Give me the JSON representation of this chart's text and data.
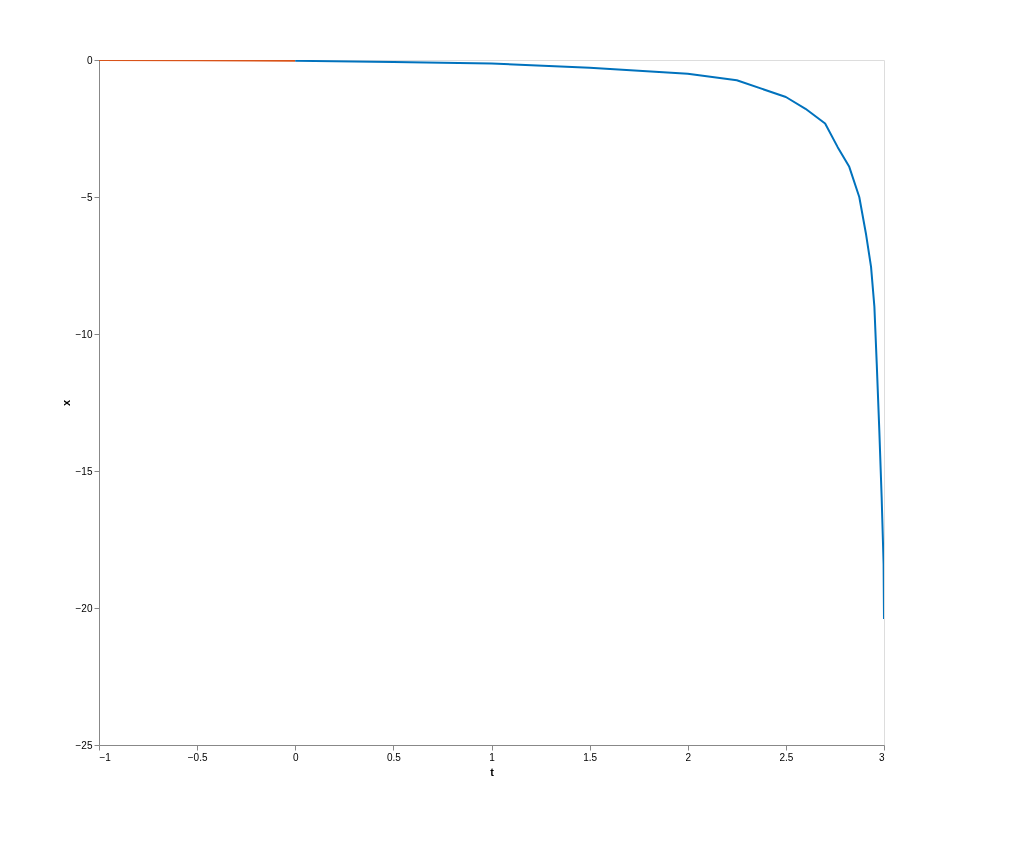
{
  "chart_data": {
    "type": "line",
    "xlabel": "t",
    "ylabel": "x",
    "xlim": [
      -1,
      3
    ],
    "ylim": [
      -25,
      0
    ],
    "xticks": [
      -1,
      -0.5,
      0,
      0.5,
      1,
      1.5,
      2,
      2.5,
      3
    ],
    "yticks": [
      -25,
      -20,
      -15,
      -10,
      -5,
      0
    ],
    "grid": false,
    "legend": false,
    "series": [
      {
        "color": "#d95319",
        "x": [
          -1,
          -0.5,
          0
        ],
        "values": [
          0,
          -0.01,
          -0.03
        ]
      },
      {
        "color": "#0072bd",
        "x": [
          0,
          0.5,
          1,
          1.5,
          2,
          2.25,
          2.5,
          2.6,
          2.7,
          2.764,
          2.823,
          2.874,
          2.908,
          2.934,
          2.951,
          2.963,
          2.976,
          2.988,
          2.998,
          3
        ],
        "values": [
          -0.03,
          -0.07,
          -0.13,
          -0.28,
          -0.5,
          -0.74,
          -1.35,
          -1.78,
          -2.32,
          -3.18,
          -3.9,
          -5.0,
          -6.34,
          -7.55,
          -9.0,
          -11.08,
          -13.5,
          -15.95,
          -18.4,
          -20.4
        ]
      }
    ]
  }
}
